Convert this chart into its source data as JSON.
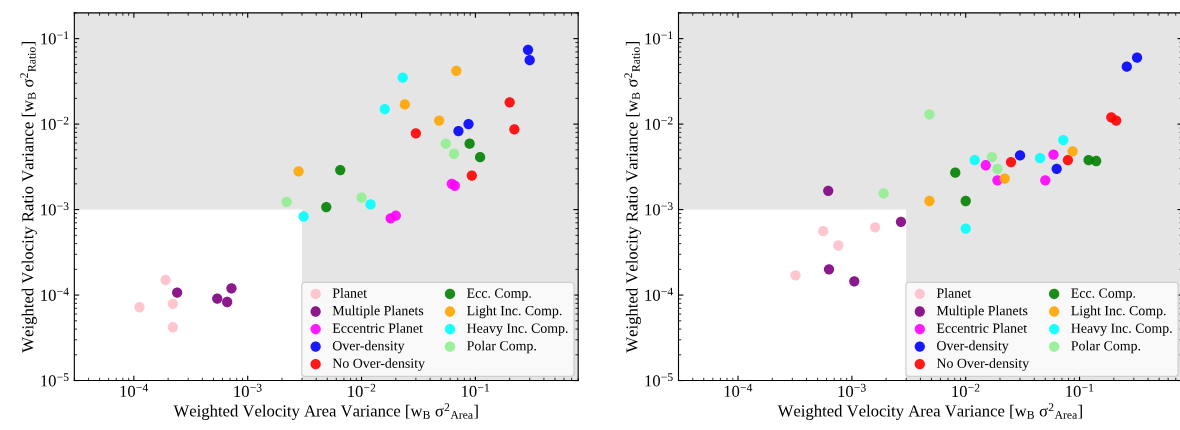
{
  "chart_data": [
    {
      "type": "scatter",
      "xlabel": "Weighted Velocity Area Variance [w$_{B}$ σ$^{2}$$_{Area}$]",
      "ylabel": "Weighted Velocity Ratio Variance [w$_{B}$ σ$^{2}$$_{Ratio}$]",
      "log": "xy",
      "xlim": [
        3e-05,
        0.8
      ],
      "ylim": [
        1e-05,
        0.2
      ],
      "xticks": [
        {
          "value": 0.0001,
          "label": "10$^{−4}$"
        },
        {
          "value": 0.001,
          "label": "10$^{−3}$"
        },
        {
          "value": 0.01,
          "label": "10$^{−2}$"
        },
        {
          "value": 0.1,
          "label": "10$^{−1}$"
        }
      ],
      "yticks": [
        {
          "value": 1e-05,
          "label": "10$^{−5}$"
        },
        {
          "value": 0.0001,
          "label": "10$^{−4}$"
        },
        {
          "value": 0.001,
          "label": "10$^{−3}$"
        },
        {
          "value": 0.01,
          "label": "10$^{−2}$"
        },
        {
          "value": 0.1,
          "label": "10$^{−1}$"
        }
      ],
      "bands": [
        {
          "axis": "y",
          "from": 0.001,
          "to": 0.2,
          "color": "#e5e5e5"
        },
        {
          "axis": "x",
          "from": 0.003,
          "to": 0.8,
          "color": "#e5e5e5"
        }
      ],
      "marker": "circle",
      "grid": false,
      "legend": "bottom right",
      "series": [
        {
          "name": "Planet",
          "color": "#ffc0cb",
          "x": [
            0.00019,
            0.000112,
            0.00022,
            0.00022
          ],
          "values": [
            0.00015,
            7.2e-05,
            7.9e-05,
            4.2e-05
          ]
        },
        {
          "name": "Multiple Planets",
          "color": "#800080",
          "x": [
            0.00024,
            0.00054,
            0.00066,
            0.00072
          ],
          "values": [
            0.000107,
            9.1e-05,
            8.3e-05,
            0.00012
          ]
        },
        {
          "name": "Eccentric Planet",
          "color": "#ff00ff",
          "x": [
            0.018,
            0.02,
            0.062,
            0.066
          ],
          "values": [
            0.00079,
            0.00085,
            0.002,
            0.0019
          ]
        },
        {
          "name": "Over-density",
          "color": "#0000ff",
          "x": [
            0.29,
            0.3,
            0.071,
            0.087
          ],
          "values": [
            0.074,
            0.056,
            0.0083,
            0.01
          ]
        },
        {
          "name": "No Over-density",
          "color": "#ff0000",
          "x": [
            0.03,
            0.2,
            0.22,
            0.093
          ],
          "values": [
            0.0078,
            0.018,
            0.0087,
            0.0025
          ]
        },
        {
          "name": "Ecc. Comp.",
          "color": "#008000",
          "x": [
            0.0065,
            0.0049,
            0.089,
            0.11
          ],
          "values": [
            0.0029,
            0.00107,
            0.0059,
            0.0041
          ]
        },
        {
          "name": "Light Inc. Comp.",
          "color": "#ffa500",
          "x": [
            0.0028,
            0.024,
            0.068,
            0.048
          ],
          "values": [
            0.0028,
            0.017,
            0.042,
            0.011
          ]
        },
        {
          "name": "Heavy Inc. Comp.",
          "color": "#00ffff",
          "x": [
            0.023,
            0.016,
            0.012,
            0.0031
          ],
          "values": [
            0.035,
            0.015,
            0.00115,
            0.00083
          ]
        },
        {
          "name": "Polar Comp.",
          "color": "#90ee90",
          "x": [
            0.0022,
            0.01,
            0.055,
            0.065
          ],
          "values": [
            0.00123,
            0.00138,
            0.0059,
            0.0045
          ]
        }
      ]
    },
    {
      "type": "scatter",
      "xlabel": "Weighted Velocity Area Variance [w$_{B}$ σ$^{2}$$_{Area}$]",
      "ylabel": "Weighted Velocity Ratio Variance [w$_{B}$ σ$^{2}$$_{Ratio}$]",
      "log": "xy",
      "xlim": [
        3e-05,
        0.8
      ],
      "ylim": [
        1e-05,
        0.2
      ],
      "xticks": [
        {
          "value": 0.0001,
          "label": "10$^{−4}$"
        },
        {
          "value": 0.001,
          "label": "10$^{−3}$"
        },
        {
          "value": 0.01,
          "label": "10$^{−2}$"
        },
        {
          "value": 0.1,
          "label": "10$^{−1}$"
        }
      ],
      "yticks": [
        {
          "value": 1e-05,
          "label": "10$^{−5}$"
        },
        {
          "value": 0.0001,
          "label": "10$^{−4}$"
        },
        {
          "value": 0.001,
          "label": "10$^{−3}$"
        },
        {
          "value": 0.01,
          "label": "10$^{−2}$"
        },
        {
          "value": 0.1,
          "label": "10$^{−1}$"
        }
      ],
      "bands": [
        {
          "axis": "y",
          "from": 0.001,
          "to": 0.2,
          "color": "#e5e5e5"
        },
        {
          "axis": "x",
          "from": 0.003,
          "to": 0.8,
          "color": "#e5e5e5"
        }
      ],
      "marker": "circle",
      "grid": false,
      "legend": "bottom right",
      "series": [
        {
          "name": "Planet",
          "color": "#ffc0cb",
          "x": [
            0.00032,
            0.00056,
            0.00076,
            0.0016
          ],
          "values": [
            0.00017,
            0.00056,
            0.00038,
            0.00062
          ]
        },
        {
          "name": "Multiple Planets",
          "color": "#800080",
          "x": [
            0.00062,
            0.00063,
            0.00105,
            0.0027
          ],
          "values": [
            0.00166,
            0.0002,
            0.000145,
            0.00072
          ]
        },
        {
          "name": "Eccentric Planet",
          "color": "#ff00ff",
          "x": [
            0.015,
            0.019,
            0.059,
            0.05
          ],
          "values": [
            0.0033,
            0.0022,
            0.0044,
            0.0022
          ]
        },
        {
          "name": "Over-density",
          "color": "#0000ff",
          "x": [
            0.26,
            0.32,
            0.03,
            0.063
          ],
          "values": [
            0.047,
            0.06,
            0.0043,
            0.003
          ]
        },
        {
          "name": "No Over-density",
          "color": "#ff0000",
          "x": [
            0.025,
            0.079,
            0.19,
            0.21
          ],
          "values": [
            0.0036,
            0.0038,
            0.012,
            0.011
          ]
        },
        {
          "name": "Ecc. Comp.",
          "color": "#008000",
          "x": [
            0.0081,
            0.01,
            0.12,
            0.14
          ],
          "values": [
            0.0027,
            0.00126,
            0.0038,
            0.0037
          ]
        },
        {
          "name": "Light Inc. Comp.",
          "color": "#ffa500",
          "x": [
            0.0048,
            0.022,
            0.087
          ],
          "values": [
            0.00126,
            0.0023,
            0.0048
          ]
        },
        {
          "name": "Heavy Inc. Comp.",
          "color": "#00ffff",
          "x": [
            0.012,
            0.045,
            0.072,
            0.01
          ],
          "values": [
            0.0038,
            0.004,
            0.0065,
            0.0006
          ]
        },
        {
          "name": "Polar Comp.",
          "color": "#90ee90",
          "x": [
            0.0048,
            0.0019,
            0.017,
            0.019
          ],
          "values": [
            0.013,
            0.00155,
            0.0041,
            0.003
          ]
        }
      ]
    }
  ]
}
